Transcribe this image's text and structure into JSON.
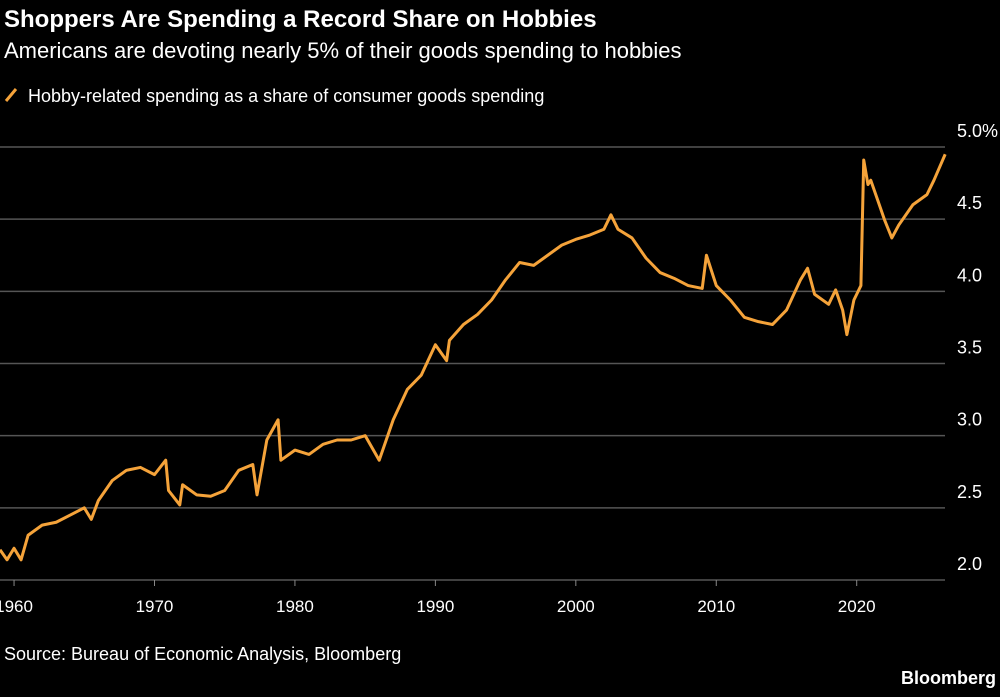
{
  "chart_data": {
    "type": "line",
    "title": "Shoppers Are Spending a Record Share on Hobbies",
    "subtitle": "Americans are devoting nearly 5% of their goods spending to hobbies",
    "source": "Source: Bureau of Economic Analysis, Bloomberg",
    "credit": "Bloomberg",
    "x": [
      1959.0,
      1959.5,
      1960.0,
      1960.5,
      1961,
      1962,
      1963,
      1964,
      1965,
      1965.5,
      1966,
      1967,
      1968,
      1969,
      1970,
      1970.8,
      1971,
      1971.8,
      1972,
      1973,
      1974,
      1975,
      1976,
      1977,
      1977.3,
      1978,
      1978.8,
      1979,
      1980,
      1981,
      1982,
      1983,
      1984,
      1985,
      1986,
      1986.5,
      1987,
      1988,
      1989,
      1990,
      1990.8,
      1991,
      1992,
      1993,
      1994,
      1995,
      1996,
      1997,
      1998,
      1999,
      2000,
      2001,
      2002,
      2002.5,
      2003,
      2004,
      2005,
      2006,
      2007,
      2008,
      2009,
      2009.3,
      2010,
      2011,
      2012,
      2013,
      2014,
      2015,
      2016,
      2016.5,
      2017,
      2018,
      2018.5,
      2019,
      2019.3,
      2019.8,
      2020.3,
      2020.5,
      2020.8,
      2021,
      2021.5,
      2022,
      2022.5,
      2023,
      2024,
      2025,
      2025.5,
      2026.3
    ],
    "series": [
      {
        "name": "Hobby-related spending as a share of consumer goods spending",
        "color": "#f5a33a",
        "values": [
          2.21,
          2.14,
          2.22,
          2.14,
          2.31,
          2.38,
          2.4,
          2.45,
          2.5,
          2.42,
          2.55,
          2.69,
          2.76,
          2.78,
          2.73,
          2.83,
          2.62,
          2.52,
          2.66,
          2.59,
          2.58,
          2.62,
          2.76,
          2.8,
          2.59,
          2.97,
          3.11,
          2.83,
          2.9,
          2.87,
          2.94,
          2.97,
          2.97,
          3.0,
          2.83,
          2.97,
          3.11,
          3.32,
          3.42,
          3.63,
          3.52,
          3.66,
          3.77,
          3.84,
          3.94,
          4.08,
          4.2,
          4.18,
          4.25,
          4.32,
          4.36,
          4.39,
          4.43,
          4.53,
          4.43,
          4.37,
          4.23,
          4.13,
          4.09,
          4.04,
          4.02,
          4.25,
          4.04,
          3.94,
          3.82,
          3.79,
          3.77,
          3.87,
          4.08,
          4.16,
          3.98,
          3.91,
          4.01,
          3.87,
          3.7,
          3.94,
          4.04,
          4.91,
          4.74,
          4.77,
          4.63,
          4.49,
          4.37,
          4.46,
          4.6,
          4.67,
          4.77,
          4.95
        ]
      }
    ],
    "xlim": [
      1959,
      2026.5
    ],
    "xticks": [
      1960,
      1970,
      1980,
      1990,
      2000,
      2010,
      2020
    ],
    "ylim": [
      2.0,
      5.0
    ],
    "yticks": [
      {
        "value": 2,
        "label": "2.0"
      },
      2.5,
      {
        "value": 3,
        "label": "3.0"
      },
      3.5,
      {
        "value": 4,
        "label": "4.0"
      },
      4.5,
      {
        "value": 5,
        "label": "5.0%"
      }
    ],
    "grid": true
  }
}
